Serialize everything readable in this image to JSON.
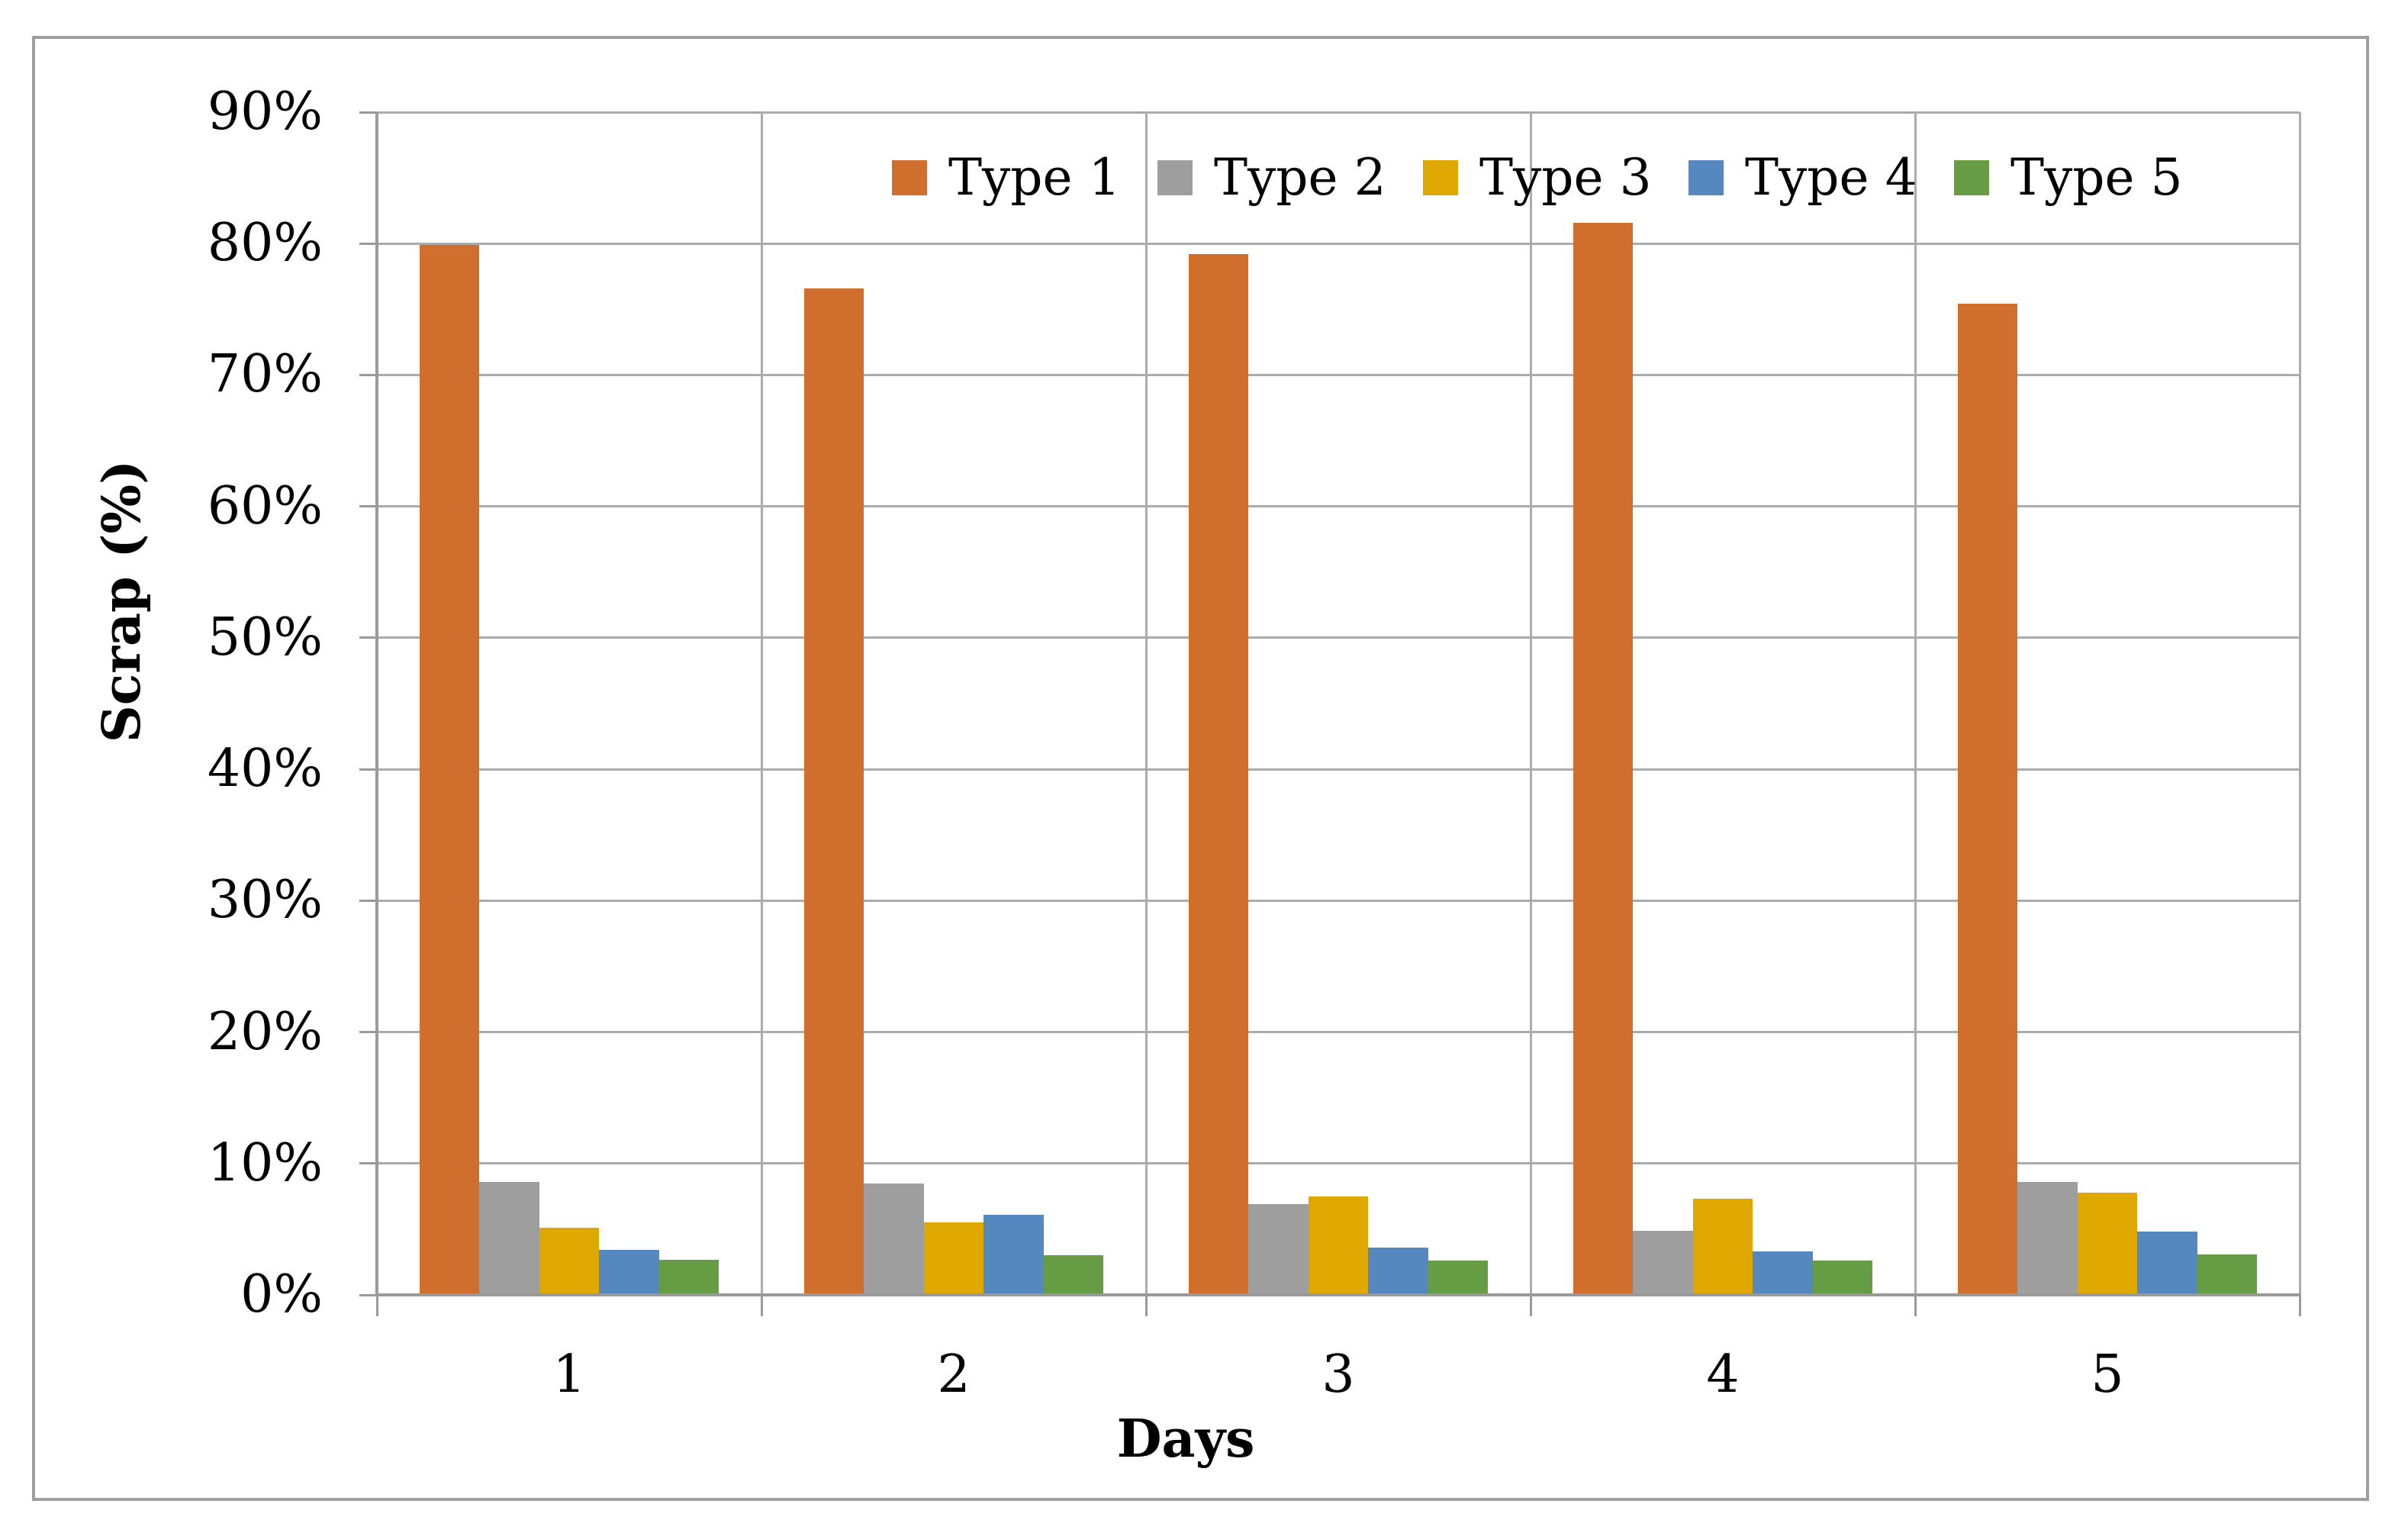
{
  "chart_data": {
    "type": "bar",
    "title": "",
    "xlabel": "Days",
    "ylabel": "Scrap (%)",
    "categories": [
      "1",
      "2",
      "3",
      "4",
      "5"
    ],
    "series": [
      {
        "name": "Type 1",
        "color": "#D06F2D",
        "values": [
          79.9,
          76.6,
          79.2,
          81.6,
          75.4
        ]
      },
      {
        "name": "Type 2",
        "color": "#9E9E9E",
        "values": [
          8.6,
          8.5,
          6.9,
          4.9,
          8.6
        ]
      },
      {
        "name": "Type 3",
        "color": "#DFA801",
        "values": [
          5.1,
          5.5,
          7.5,
          7.3,
          7.8
        ]
      },
      {
        "name": "Type 4",
        "color": "#5588BE",
        "values": [
          3.4,
          6.1,
          3.6,
          3.3,
          4.8
        ]
      },
      {
        "name": "Type 5",
        "color": "#669C43",
        "values": [
          2.7,
          3.0,
          2.6,
          2.6,
          3.1
        ]
      }
    ],
    "ylim": [
      0,
      90
    ],
    "ytick_labels": [
      "0%",
      "10%",
      "20%",
      "30%",
      "40%",
      "50%",
      "60%",
      "70%",
      "80%",
      "90%"
    ],
    "grid": true,
    "legend_position": "top-inside"
  },
  "colors": {
    "gridline": "#ABABAB",
    "axis": "#9A9A9A",
    "frame": "#9E9E9E",
    "background": "#FFFFFF",
    "text": "#000000"
  }
}
